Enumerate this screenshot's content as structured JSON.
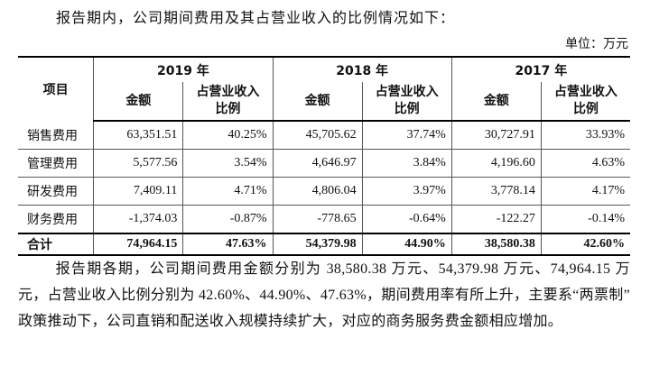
{
  "intro": "报告期内，公司期间费用及其占营业收入的比例情况如下：",
  "unit": "单位：万元",
  "table": {
    "item_header": "项目",
    "years": [
      "2019 年",
      "2018 年",
      "2017 年"
    ],
    "sub_headers": [
      "金额",
      "占营业收入比例"
    ],
    "rows": [
      [
        "销售费用",
        "63,351.51",
        "40.25%",
        "45,705.62",
        "37.74%",
        "30,727.91",
        "33.93%"
      ],
      [
        "管理费用",
        "5,577.56",
        "3.54%",
        "4,646.97",
        "3.84%",
        "4,196.60",
        "4.63%"
      ],
      [
        "研发费用",
        "7,409.11",
        "4.71%",
        "4,806.04",
        "3.97%",
        "3,778.14",
        "4.17%"
      ],
      [
        "财务费用",
        "-1,374.03",
        "-0.87%",
        "-778.65",
        "-0.64%",
        "-122.27",
        "-0.14%"
      ]
    ],
    "total": [
      "合计",
      "74,964.15",
      "47.63%",
      "54,379.98",
      "44.90%",
      "38,580.38",
      "42.60%"
    ]
  },
  "paragraph": "报告期各期，公司期间费用金额分别为 38,580.38 万元、54,379.98 万元、74,964.15 万元，占营业收入比例分别为 42.60%、44.90%、47.63%，期间费用率有所上升，主要系“两票制”政策推动下，公司直销和配送收入规模持续扩大，对应的商务服务费金额相应增加。"
}
